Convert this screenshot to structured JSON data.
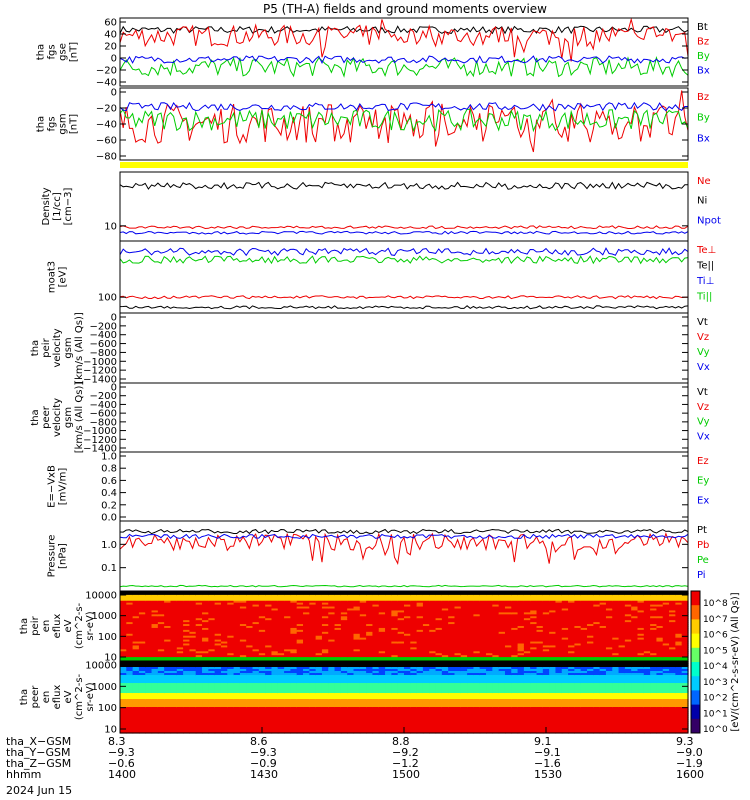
{
  "title": "P5 (TH-A) fields and ground moments overview",
  "date_label": "2024 Jun 15",
  "colors": {
    "black": "#000000",
    "red": "#ee0000",
    "green": "#00cc00",
    "blue": "#0000ee",
    "yellow": "#ffff00"
  },
  "chart_data": [
    {
      "id": "fgs_gse",
      "type": "line",
      "ylabel": [
        "tha",
        "fgs",
        "gse",
        "[nT]"
      ],
      "yticks": [
        "60",
        "40",
        "20",
        "0",
        "−20",
        "−40"
      ],
      "ylim": [
        -50,
        65
      ],
      "series": [
        {
          "name": "Bt",
          "color": "#000000",
          "level": 45,
          "noise": 6
        },
        {
          "name": "Bz",
          "color": "#ee0000",
          "level": 35,
          "noise": 18
        },
        {
          "name": "By",
          "color": "#00cc00",
          "level": -18,
          "noise": 16
        },
        {
          "name": "Bx",
          "color": "#0000ee",
          "level": -5,
          "noise": 6
        }
      ]
    },
    {
      "id": "fgs_gsm",
      "type": "line",
      "ylabel": [
        "tha",
        "fgs",
        "gsm",
        "[nT]"
      ],
      "yticks": [
        "0",
        "−20",
        "−40",
        "−60",
        "−80"
      ],
      "ylim": [
        -100,
        8
      ],
      "series": [
        {
          "name": "Bz",
          "color": "#ee0000",
          "level": -45,
          "noise": 30
        },
        {
          "name": "By",
          "color": "#00cc00",
          "level": -40,
          "noise": 16
        },
        {
          "name": "Bx",
          "color": "#0000ee",
          "level": -20,
          "noise": 6
        }
      ]
    },
    {
      "id": "density",
      "type": "line",
      "log": true,
      "ylabel": [
        "Density",
        "[1/cc]",
        "[cm−3]"
      ],
      "yticks": [
        "10"
      ],
      "series": [
        {
          "name": "Ne",
          "color": "#ee0000",
          "level": 0.8,
          "noise": 0.02
        },
        {
          "name": "Ni",
          "color": "#000000",
          "level": 0.2,
          "noise": 0.05
        },
        {
          "name": "Npot",
          "color": "#0000ee",
          "level": 0.88,
          "noise": 0.02
        }
      ]
    },
    {
      "id": "temperature",
      "type": "line",
      "log": true,
      "ylabel": [
        "moat3",
        "[eV]"
      ],
      "yticks": [
        "100"
      ],
      "series": [
        {
          "name": "Te⊥",
          "color": "#ee0000",
          "level": 0.78,
          "noise": 0.02
        },
        {
          "name": "Te||",
          "color": "#000000",
          "level": 0.92,
          "noise": 0.02
        },
        {
          "name": "Ti⊥",
          "color": "#0000ee",
          "level": 0.15,
          "noise": 0.05
        },
        {
          "name": "Ti||",
          "color": "#00cc00",
          "level": 0.26,
          "noise": 0.05
        }
      ]
    },
    {
      "id": "peir_velocity",
      "type": "line",
      "ylabel": [
        "tha",
        "peir",
        "velocity",
        "gsm",
        "[km/s (All Qs)]"
      ],
      "yticks": [
        "0",
        "−200",
        "−400",
        "−600",
        "−800",
        "−1000",
        "−1200",
        "−1400"
      ],
      "series": [
        {
          "name": "Vt",
          "color": "#000000"
        },
        {
          "name": "Vz",
          "color": "#ee0000"
        },
        {
          "name": "Vy",
          "color": "#00cc00"
        },
        {
          "name": "Vx",
          "color": "#0000ee"
        }
      ]
    },
    {
      "id": "peer_velocity",
      "type": "line",
      "ylabel": [
        "tha",
        "peer",
        "velocity",
        "gsm",
        "[km/s (All Qs)]"
      ],
      "yticks": [
        "0",
        "−200",
        "−400",
        "−600",
        "−800",
        "−1000",
        "−1200",
        "−1400"
      ],
      "series": [
        {
          "name": "Vt",
          "color": "#000000"
        },
        {
          "name": "Vz",
          "color": "#ee0000"
        },
        {
          "name": "Vy",
          "color": "#00cc00"
        },
        {
          "name": "Vx",
          "color": "#0000ee"
        }
      ]
    },
    {
      "id": "efield",
      "type": "line",
      "ylabel": [
        "E=−VxB",
        "[mV/m]"
      ],
      "yticks": [
        "1.0",
        "0.8",
        "0.6",
        "0.4",
        "0.2",
        "0.0"
      ],
      "series": [
        {
          "name": "Ez",
          "color": "#ee0000"
        },
        {
          "name": "Ey",
          "color": "#00cc00"
        },
        {
          "name": "Ex",
          "color": "#0000ee"
        }
      ]
    },
    {
      "id": "pressure",
      "type": "line",
      "log": true,
      "ylabel": [
        "Pressure",
        "[nPa]"
      ],
      "yticks": [
        "1.0",
        "0.1"
      ],
      "series": [
        {
          "name": "Pt",
          "color": "#000000",
          "level": 0.15,
          "noise": 0.03
        },
        {
          "name": "Pb",
          "color": "#ee0000",
          "level": 0.3,
          "noise": 0.12
        },
        {
          "name": "Pe",
          "color": "#00cc00",
          "level": 0.93,
          "noise": 0.01
        },
        {
          "name": "Pi",
          "color": "#0000ee",
          "level": 0.22,
          "noise": 0.03
        }
      ]
    },
    {
      "id": "peir_spec",
      "type": "heatmap",
      "ylabel": [
        "tha",
        "peir",
        "en",
        "eflux",
        "eV",
        "(cm^2-s-",
        "sr-eV)"
      ],
      "yticks": [
        "10000",
        "1000",
        "100",
        "10"
      ]
    },
    {
      "id": "peer_spec",
      "type": "heatmap",
      "ylabel": [
        "tha",
        "peer",
        "en",
        "eflux",
        "eV",
        "(cm^2-s-",
        "sr-eV)"
      ],
      "yticks": [
        "10000",
        "1000",
        "100",
        "10"
      ]
    }
  ],
  "colorbar": {
    "label": "[eV/(cm^2-s-sr-eV) (All Qs)]",
    "ticks": [
      "10^8",
      "10^7",
      "10^6",
      "10^5",
      "10^4",
      "10^3",
      "10^2",
      "10^1",
      "10^0"
    ]
  },
  "x_axis": {
    "rows": [
      {
        "label": "tha_X−GSM",
        "values": [
          "8.3",
          "8.6",
          "8.8",
          "9.1",
          "9.3"
        ]
      },
      {
        "label": "tha_Y−GSM",
        "values": [
          "−9.3",
          "−9.3",
          "−9.2",
          "−9.1",
          "−9.0"
        ]
      },
      {
        "label": "tha_Z−GSM",
        "values": [
          "−0.6",
          "−0.9",
          "−1.2",
          "−1.6",
          "−1.9"
        ]
      },
      {
        "label": "hhmm",
        "values": [
          "1400",
          "1430",
          "1500",
          "1530",
          "1600"
        ]
      }
    ]
  }
}
